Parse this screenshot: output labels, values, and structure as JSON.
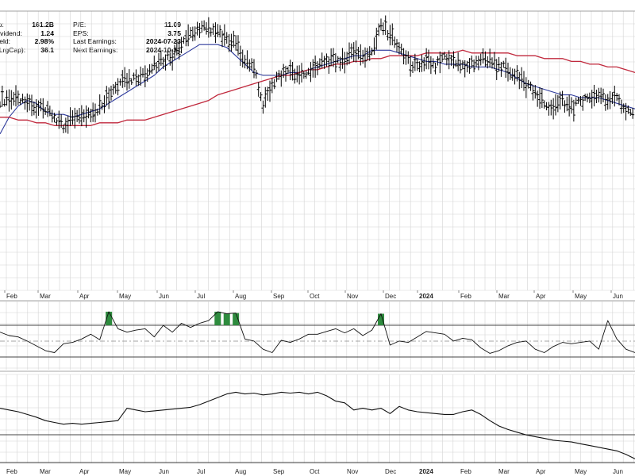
{
  "fundamentals": {
    "left": [
      {
        "label": "t Cap:",
        "value": "161.2B"
      },
      {
        "label": "rd Dividend:",
        "value": "1.24"
      },
      {
        "label": "rd Yield:",
        "value": "2.98%"
      },
      {
        "label": "TR (LrgCap):",
        "value": "36.1"
      }
    ],
    "right": [
      {
        "label": "P/E:",
        "value": "11.09"
      },
      {
        "label": "EPS:",
        "value": "3.75"
      },
      {
        "label": "Last Earnings:",
        "value": "2024-07-23"
      },
      {
        "label": "Next Earnings:",
        "value": "2024-10-31"
      }
    ]
  },
  "colors": {
    "price": "#000000",
    "ma_short": "#2e3a9c",
    "ma_long": "#c0283c",
    "grid": "#d4d4d4",
    "overbought_fill": "#2e8b3e"
  },
  "chart_data": [
    {
      "type": "ohlc",
      "x_axis_labels": [
        "Feb",
        "Mar",
        "Apr",
        "May",
        "Jun",
        "Jul",
        "Aug",
        "Sep",
        "Oct",
        "Nov",
        "Dec",
        "2024",
        "Feb",
        "Mar",
        "Apr",
        "May",
        "Jun"
      ],
      "x": [
        0,
        5,
        10,
        15,
        20,
        25,
        30,
        35,
        40,
        45,
        50,
        55,
        60,
        65,
        70,
        75,
        80,
        85,
        90,
        95,
        100,
        105,
        110,
        115,
        120,
        125,
        130,
        135,
        140,
        145,
        150,
        155,
        160,
        165,
        170,
        175,
        180,
        185,
        190,
        195,
        200,
        205,
        210,
        215,
        220,
        225,
        230,
        235,
        240,
        245,
        250,
        255,
        260,
        265,
        270,
        275,
        280,
        285,
        290,
        295,
        300,
        305,
        310,
        315,
        320,
        325,
        330,
        335,
        340,
        345,
        350
      ],
      "series": [
        {
          "role": "price",
          "values": [
            0.68,
            0.69,
            0.68,
            0.67,
            0.66,
            0.64,
            0.62,
            0.59,
            0.62,
            0.64,
            0.63,
            0.66,
            0.7,
            0.74,
            0.76,
            0.75,
            0.78,
            0.8,
            0.82,
            0.84,
            0.88,
            0.91,
            0.93,
            0.94,
            0.93,
            0.9,
            0.88,
            0.83,
            0.8,
            0.66,
            0.74,
            0.77,
            0.79,
            0.77,
            0.78,
            0.8,
            0.82,
            0.82,
            0.83,
            0.86,
            0.84,
            0.86,
            0.95,
            0.92,
            0.86,
            0.82,
            0.8,
            0.82,
            0.8,
            0.83,
            0.82,
            0.8,
            0.81,
            0.83,
            0.82,
            0.8,
            0.79,
            0.77,
            0.74,
            0.7,
            0.67,
            0.64,
            0.68,
            0.65,
            0.68,
            0.69,
            0.7,
            0.67,
            0.69,
            0.64,
            0.62
          ]
        },
        {
          "role": "ma_short",
          "values": [
            0.56,
            0.62,
            0.66,
            0.68,
            0.67,
            0.64,
            0.63,
            0.63,
            0.62,
            0.63,
            0.64,
            0.65,
            0.67,
            0.69,
            0.71,
            0.73,
            0.75,
            0.77,
            0.8,
            0.82,
            0.84,
            0.86,
            0.88,
            0.88,
            0.88,
            0.87,
            0.84,
            0.81,
            0.78,
            0.77,
            0.77,
            0.77,
            0.78,
            0.78,
            0.79,
            0.8,
            0.81,
            0.82,
            0.83,
            0.84,
            0.84,
            0.86,
            0.86,
            0.86,
            0.85,
            0.84,
            0.83,
            0.82,
            0.82,
            0.81,
            0.81,
            0.81,
            0.8,
            0.8,
            0.8,
            0.79,
            0.78,
            0.76,
            0.74,
            0.73,
            0.72,
            0.71,
            0.7,
            0.7,
            0.69,
            0.69,
            0.69,
            0.68,
            0.67,
            0.66,
            0.65
          ]
        },
        {
          "role": "ma_long",
          "values": [
            0.62,
            0.62,
            0.61,
            0.61,
            0.6,
            0.6,
            0.59,
            0.59,
            0.59,
            0.59,
            0.59,
            0.6,
            0.6,
            0.6,
            0.61,
            0.61,
            0.61,
            0.62,
            0.63,
            0.64,
            0.65,
            0.66,
            0.67,
            0.68,
            0.7,
            0.71,
            0.72,
            0.73,
            0.74,
            0.75,
            0.76,
            0.77,
            0.77,
            0.78,
            0.79,
            0.79,
            0.8,
            0.81,
            0.81,
            0.82,
            0.82,
            0.83,
            0.83,
            0.84,
            0.84,
            0.84,
            0.84,
            0.85,
            0.85,
            0.85,
            0.85,
            0.86,
            0.85,
            0.85,
            0.85,
            0.85,
            0.85,
            0.84,
            0.84,
            0.84,
            0.83,
            0.83,
            0.83,
            0.82,
            0.82,
            0.81,
            0.81,
            0.8,
            0.8,
            0.79,
            0.78
          ]
        }
      ]
    },
    {
      "type": "line",
      "role": "rsi",
      "x": [
        0,
        5,
        10,
        15,
        20,
        25,
        30,
        35,
        40,
        45,
        50,
        55,
        60,
        65,
        70,
        75,
        80,
        85,
        90,
        95,
        100,
        105,
        110,
        115,
        120,
        125,
        130,
        135,
        140,
        145,
        150,
        155,
        160,
        165,
        170,
        175,
        180,
        185,
        190,
        195,
        200,
        205,
        210,
        215,
        220,
        225,
        230,
        235,
        240,
        245,
        250,
        255,
        260,
        265,
        270,
        275,
        280,
        285,
        290,
        295,
        300,
        305,
        310,
        315,
        320,
        325,
        330,
        335,
        340,
        345,
        350
      ],
      "values": [
        0.55,
        0.5,
        0.48,
        0.42,
        0.35,
        0.28,
        0.25,
        0.38,
        0.4,
        0.45,
        0.52,
        0.44,
        0.85,
        0.6,
        0.55,
        0.58,
        0.6,
        0.48,
        0.65,
        0.55,
        0.68,
        0.62,
        0.68,
        0.72,
        0.85,
        0.82,
        0.83,
        0.45,
        0.42,
        0.3,
        0.25,
        0.43,
        0.4,
        0.45,
        0.52,
        0.52,
        0.56,
        0.6,
        0.54,
        0.6,
        0.5,
        0.58,
        0.82,
        0.36,
        0.42,
        0.4,
        0.48,
        0.56,
        0.54,
        0.52,
        0.42,
        0.46,
        0.44,
        0.32,
        0.24,
        0.28,
        0.35,
        0.4,
        0.42,
        0.3,
        0.25,
        0.34,
        0.4,
        0.38,
        0.4,
        0.42,
        0.3,
        0.72,
        0.45,
        0.3,
        0.25
      ]
    },
    {
      "type": "line",
      "role": "relative-strength",
      "x_axis_labels": [
        "Feb",
        "Mar",
        "Apr",
        "May",
        "Jun",
        "Jul",
        "Aug",
        "Sep",
        "Oct",
        "Nov",
        "Dec",
        "2024",
        "Feb",
        "Mar",
        "Apr",
        "May",
        "Jun"
      ],
      "x": [
        0,
        5,
        10,
        15,
        20,
        25,
        30,
        35,
        40,
        45,
        50,
        55,
        60,
        65,
        70,
        75,
        80,
        85,
        90,
        95,
        100,
        105,
        110,
        115,
        120,
        125,
        130,
        135,
        140,
        145,
        150,
        155,
        160,
        165,
        170,
        175,
        180,
        185,
        190,
        195,
        200,
        205,
        210,
        215,
        220,
        225,
        230,
        235,
        240,
        245,
        250,
        255,
        260,
        265,
        270,
        275,
        280,
        285,
        290,
        295,
        300,
        305,
        310,
        315,
        320,
        325,
        330,
        335,
        340,
        345,
        350
      ],
      "values": [
        0.62,
        0.6,
        0.58,
        0.55,
        0.52,
        0.48,
        0.46,
        0.44,
        0.45,
        0.44,
        0.45,
        0.46,
        0.47,
        0.48,
        0.62,
        0.6,
        0.58,
        0.59,
        0.6,
        0.61,
        0.62,
        0.63,
        0.66,
        0.7,
        0.74,
        0.78,
        0.8,
        0.78,
        0.79,
        0.77,
        0.78,
        0.8,
        0.79,
        0.8,
        0.78,
        0.8,
        0.76,
        0.7,
        0.68,
        0.6,
        0.62,
        0.6,
        0.62,
        0.56,
        0.64,
        0.6,
        0.58,
        0.57,
        0.56,
        0.55,
        0.55,
        0.58,
        0.6,
        0.55,
        0.48,
        0.42,
        0.38,
        0.35,
        0.32,
        0.3,
        0.28,
        0.26,
        0.25,
        0.24,
        0.22,
        0.2,
        0.18,
        0.16,
        0.14,
        0.1,
        0.05
      ]
    }
  ]
}
